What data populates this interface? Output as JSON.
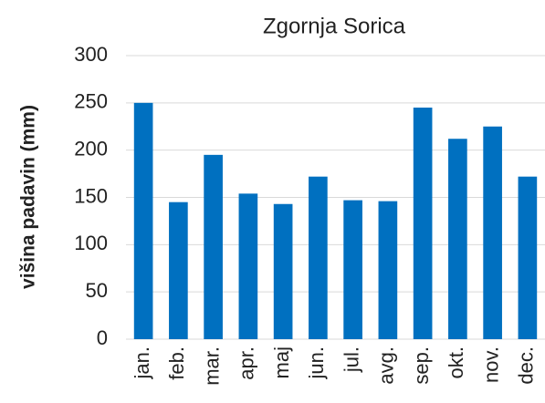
{
  "chart_data": {
    "type": "bar",
    "title": "Zgornja Sorica",
    "y_label": "višina padavin (mm)",
    "categories": [
      "jan.",
      "feb.",
      "mar.",
      "apr.",
      "maj",
      "jun.",
      "jul.",
      "avg.",
      "sep.",
      "okt.",
      "nov.",
      "dec."
    ],
    "values": [
      250,
      145,
      195,
      154,
      143,
      172,
      147,
      146,
      245,
      212,
      225,
      172
    ],
    "color": "#0070c0",
    "ylim": [
      0,
      300
    ],
    "yticks": [
      0,
      50,
      100,
      150,
      200,
      250,
      300
    ],
    "grid": true
  }
}
